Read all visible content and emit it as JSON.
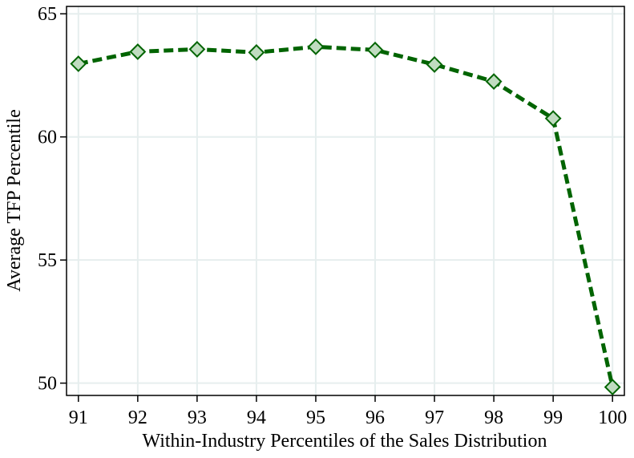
{
  "chart_data": {
    "type": "line",
    "x_label": "Within-Industry Percentiles of the Sales Distribution",
    "y_label": "Average TFP Percentile",
    "x": [
      91,
      92,
      93,
      94,
      95,
      96,
      97,
      98,
      99,
      100
    ],
    "series": [
      {
        "name": "Average TFP Percentile",
        "color": "#006400",
        "marker_fill": "#c0dcc0",
        "values": [
          62.97,
          63.46,
          63.56,
          63.43,
          63.66,
          63.53,
          62.94,
          62.25,
          60.75,
          49.84
        ]
      }
    ],
    "xlim": [
      90.8,
      100.2
    ],
    "xticks": [
      91,
      92,
      93,
      94,
      95,
      96,
      97,
      98,
      99,
      100
    ],
    "ylim": [
      49.5,
      65.3
    ],
    "yticks": [
      50,
      55,
      60,
      65
    ],
    "grid": true
  }
}
